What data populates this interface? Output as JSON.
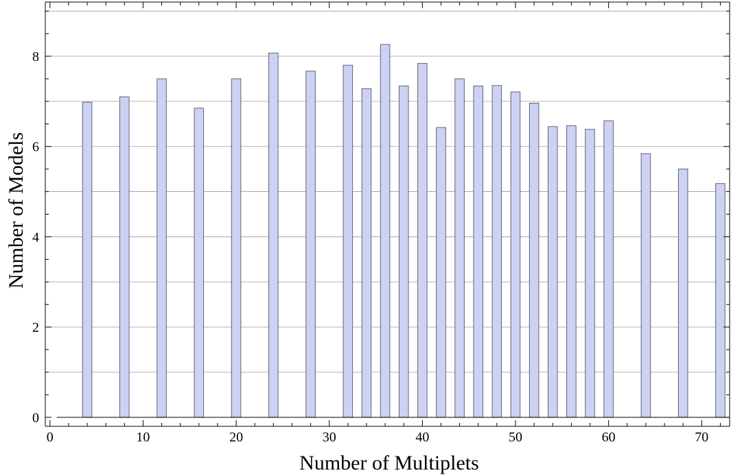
{
  "chart_data": {
    "type": "bar",
    "title": "",
    "xlabel": "Number of Multiplets",
    "ylabel": "Number of Models",
    "xlim": [
      -0.5,
      73
    ],
    "ylim": [
      -0.2,
      9.2
    ],
    "grid": true,
    "x_ticks": [
      0,
      10,
      20,
      30,
      40,
      50,
      60,
      70
    ],
    "y_ticks": [
      0,
      2,
      4,
      6,
      8
    ],
    "x_tick_labels": [
      "0",
      "10",
      "20",
      "30",
      "40",
      "50",
      "60",
      "70"
    ],
    "y_tick_labels": [
      "0",
      "2",
      "4",
      "6",
      "8"
    ],
    "grid_y": [
      1,
      3,
      5,
      7,
      9
    ],
    "bar_width": 1,
    "x": [
      4,
      8,
      12,
      16,
      20,
      24,
      28,
      32,
      34,
      36,
      38,
      40,
      42,
      44,
      46,
      48,
      50,
      52,
      54,
      56,
      58,
      60,
      64,
      68,
      72
    ],
    "values": [
      6.98,
      7.1,
      7.5,
      6.85,
      7.5,
      8.07,
      7.67,
      7.8,
      7.28,
      8.26,
      7.34,
      7.84,
      6.42,
      7.5,
      7.34,
      7.35,
      7.21,
      6.96,
      6.44,
      6.46,
      6.38,
      6.57,
      5.84,
      5.5,
      5.18
    ]
  }
}
